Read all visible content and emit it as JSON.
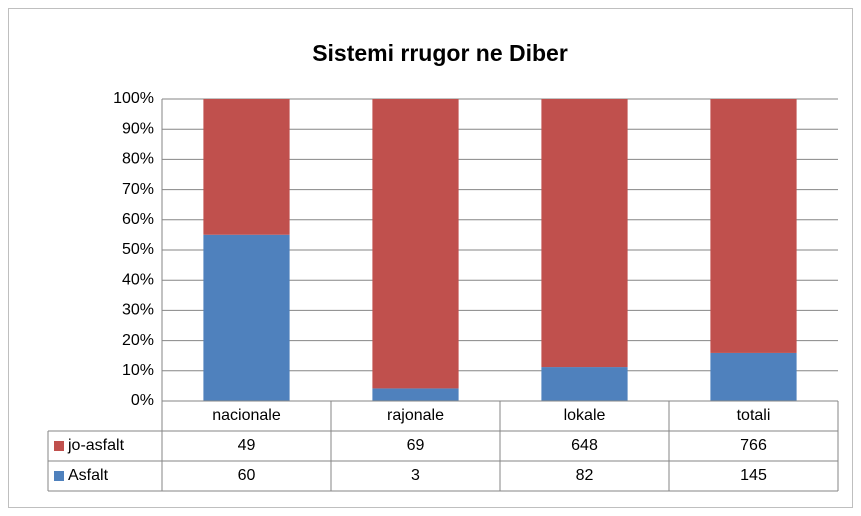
{
  "chart_data": {
    "type": "bar",
    "stack": "percent",
    "title": "Sistemi rrugor ne Diber",
    "categories": [
      "nacionale",
      "rajonale",
      "lokale",
      "totali"
    ],
    "series": [
      {
        "name": "jo-asfalt",
        "color": "#c0504d",
        "values": [
          49,
          69,
          648,
          766
        ]
      },
      {
        "name": "Asfalt",
        "color": "#4f81bd",
        "values": [
          60,
          3,
          82,
          145
        ]
      }
    ],
    "ylim": [
      0,
      100
    ],
    "yticks": [
      {
        "value": 0,
        "label": "0%"
      },
      {
        "value": 10,
        "label": "10%"
      },
      {
        "value": 20,
        "label": "20%"
      },
      {
        "value": 30,
        "label": "30%"
      },
      {
        "value": 40,
        "label": "40%"
      },
      {
        "value": 50,
        "label": "50%"
      },
      {
        "value": 60,
        "label": "60%"
      },
      {
        "value": 70,
        "label": "70%"
      },
      {
        "value": 80,
        "label": "80%"
      },
      {
        "value": 90,
        "label": "90%"
      },
      {
        "value": 100,
        "label": "100%"
      }
    ],
    "grid": true
  }
}
